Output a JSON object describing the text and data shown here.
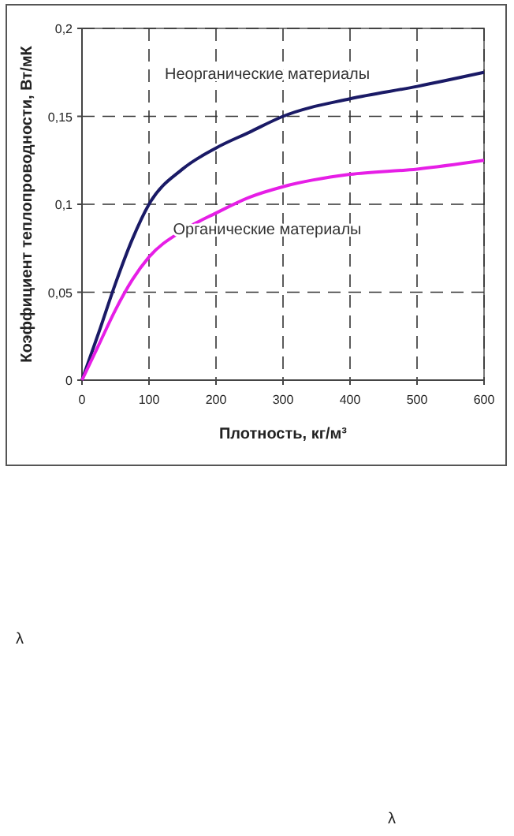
{
  "chart_data": {
    "type": "line",
    "xlabel": "Плотность, кг/м³",
    "ylabel": "Коэффициент теплопроводности, Вт/мК",
    "x": [
      0,
      25,
      50,
      75,
      100,
      150,
      200,
      250,
      300,
      400,
      500,
      600
    ],
    "series": [
      {
        "name": "Неорганические материалы",
        "color": "#1a1a66",
        "values": [
          0,
          0.027,
          0.055,
          0.08,
          0.1,
          0.12,
          0.132,
          0.141,
          0.15,
          0.16,
          0.167,
          0.175
        ]
      },
      {
        "name": "Органические материалы",
        "color": "#e61ee6",
        "values": [
          0,
          0.02,
          0.04,
          0.057,
          0.07,
          0.085,
          0.095,
          0.104,
          0.11,
          0.117,
          0.12,
          0.125
        ]
      }
    ],
    "xlim": [
      0,
      600
    ],
    "ylim": [
      0,
      0.2
    ],
    "xticks": [
      0,
      100,
      200,
      300,
      400,
      500,
      600
    ],
    "yticks": [
      {
        "value": 0,
        "label": "0"
      },
      {
        "value": 0.05,
        "label": "0,05"
      },
      {
        "value": 0.1,
        "label": "0,1"
      },
      {
        "value": 0.15,
        "label": "0,15"
      },
      {
        "value": 0.2,
        "label": "0,2"
      }
    ],
    "grid": true,
    "marker": "none",
    "line_style": "solid",
    "annotations": [
      "λ",
      "λ"
    ]
  }
}
